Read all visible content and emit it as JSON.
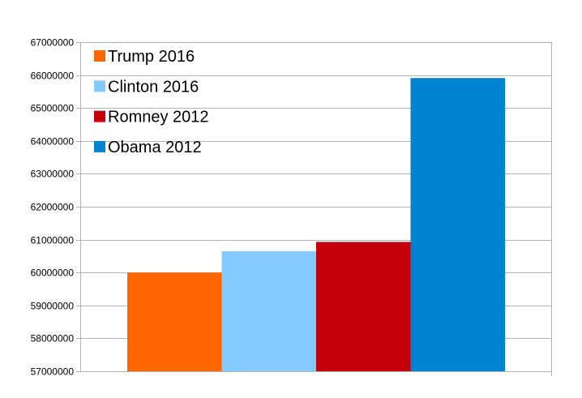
{
  "chart_data": {
    "type": "bar",
    "title": "",
    "xlabel": "",
    "ylabel": "",
    "ylim": [
      57000000,
      67000000
    ],
    "ytick_step": 1000000,
    "yticks": [
      "57000000",
      "58000000",
      "59000000",
      "60000000",
      "61000000",
      "62000000",
      "63000000",
      "64000000",
      "65000000",
      "66000000",
      "67000000"
    ],
    "grid": true,
    "legend_position": "top-left (inside plot)",
    "series": [
      {
        "name": "Trump 2016",
        "value": 60000000,
        "color": "#ff6600"
      },
      {
        "name": "Clinton 2016",
        "value": 60650000,
        "color": "#83caff"
      },
      {
        "name": "Romney 2012",
        "value": 60930000,
        "color": "#c5000b"
      },
      {
        "name": "Obama 2012",
        "value": 65910000,
        "color": "#0084d1"
      }
    ]
  }
}
